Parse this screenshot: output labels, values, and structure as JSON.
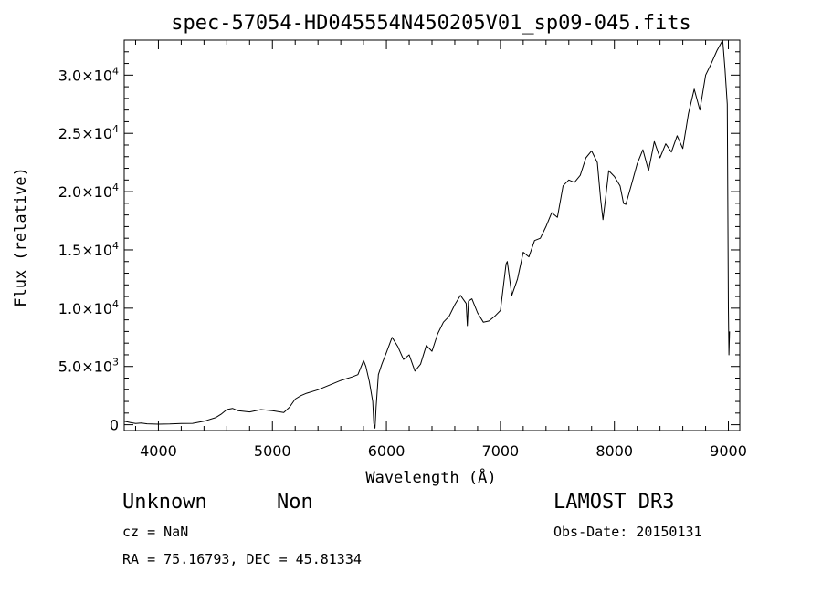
{
  "chart_data": {
    "type": "line",
    "title": "spec-57054-HD045554N450205V01_sp09-045.fits",
    "xlabel": "Wavelength (Å)",
    "ylabel": "Flux (relative)",
    "xlim": [
      3700,
      9100
    ],
    "ylim": [
      -500,
      33000
    ],
    "x_ticks": [
      4000,
      5000,
      6000,
      7000,
      8000,
      9000
    ],
    "x_tick_labels": [
      "4000",
      "5000",
      "6000",
      "7000",
      "8000",
      "9000"
    ],
    "y_ticks": [
      {
        "value": 0,
        "mantissa": "0",
        "exponent": ""
      },
      {
        "value": 5000,
        "mantissa": "5.0×10",
        "exponent": "3"
      },
      {
        "value": 10000,
        "mantissa": "1.0×10",
        "exponent": "4"
      },
      {
        "value": 15000,
        "mantissa": "1.5×10",
        "exponent": "4"
      },
      {
        "value": 20000,
        "mantissa": "2.0×10",
        "exponent": "4"
      },
      {
        "value": 25000,
        "mantissa": "2.5×10",
        "exponent": "4"
      },
      {
        "value": 30000,
        "mantissa": "3.0×10",
        "exponent": "4"
      }
    ],
    "series": [
      {
        "name": "flux",
        "x": [
          3700,
          3750,
          3800,
          3850,
          3900,
          4000,
          4100,
          4200,
          4300,
          4400,
          4500,
          4550,
          4600,
          4650,
          4700,
          4800,
          4900,
          5000,
          5100,
          5150,
          5200,
          5250,
          5300,
          5400,
          5500,
          5600,
          5700,
          5750,
          5800,
          5820,
          5850,
          5880,
          5890,
          5900,
          5910,
          5930,
          5960,
          6000,
          6050,
          6100,
          6150,
          6200,
          6250,
          6300,
          6350,
          6400,
          6450,
          6500,
          6550,
          6600,
          6650,
          6700,
          6710,
          6720,
          6750,
          6800,
          6850,
          6900,
          6950,
          7000,
          7050,
          7060,
          7100,
          7150,
          7200,
          7250,
          7300,
          7350,
          7400,
          7450,
          7500,
          7550,
          7600,
          7650,
          7700,
          7750,
          7800,
          7850,
          7880,
          7900,
          7920,
          7950,
          8000,
          8050,
          8080,
          8100,
          8150,
          8200,
          8250,
          8300,
          8350,
          8400,
          8450,
          8500,
          8550,
          8600,
          8650,
          8700,
          8750,
          8800,
          8850,
          8900,
          8950,
          8970,
          8990,
          9000,
          9005,
          9010
        ],
        "y": [
          300,
          200,
          100,
          150,
          80,
          50,
          60,
          100,
          120,
          300,
          600,
          900,
          1300,
          1400,
          1200,
          1100,
          1300,
          1200,
          1050,
          1500,
          2200,
          2500,
          2700,
          3000,
          3400,
          3800,
          4100,
          4300,
          5500,
          5000,
          3700,
          2000,
          100,
          -300,
          1500,
          4300,
          5200,
          6200,
          7500,
          6700,
          5600,
          6000,
          4600,
          5200,
          6800,
          6300,
          7800,
          8800,
          9300,
          10300,
          11100,
          10400,
          8500,
          10600,
          10800,
          9600,
          8800,
          8900,
          9300,
          9800,
          13800,
          14000,
          11100,
          12500,
          14800,
          14400,
          15800,
          16000,
          17000,
          18200,
          17800,
          20500,
          21000,
          20800,
          21400,
          22900,
          23500,
          22500,
          19300,
          17600,
          19200,
          21800,
          21300,
          20500,
          19000,
          18900,
          20600,
          22400,
          23600,
          21800,
          24300,
          22900,
          24100,
          23400,
          24800,
          23700,
          26700,
          28800,
          27000,
          30000,
          31000,
          32100,
          33000,
          30500,
          27500,
          10000,
          6000,
          8000
        ]
      }
    ]
  },
  "labels": {
    "object_class": "Unknown",
    "object_subclass": "Non",
    "survey": "LAMOST DR3",
    "cz": "cz = NaN",
    "obs_date": "Obs-Date: 20150131",
    "coords": "RA =  75.16793, DEC =  45.81334"
  }
}
